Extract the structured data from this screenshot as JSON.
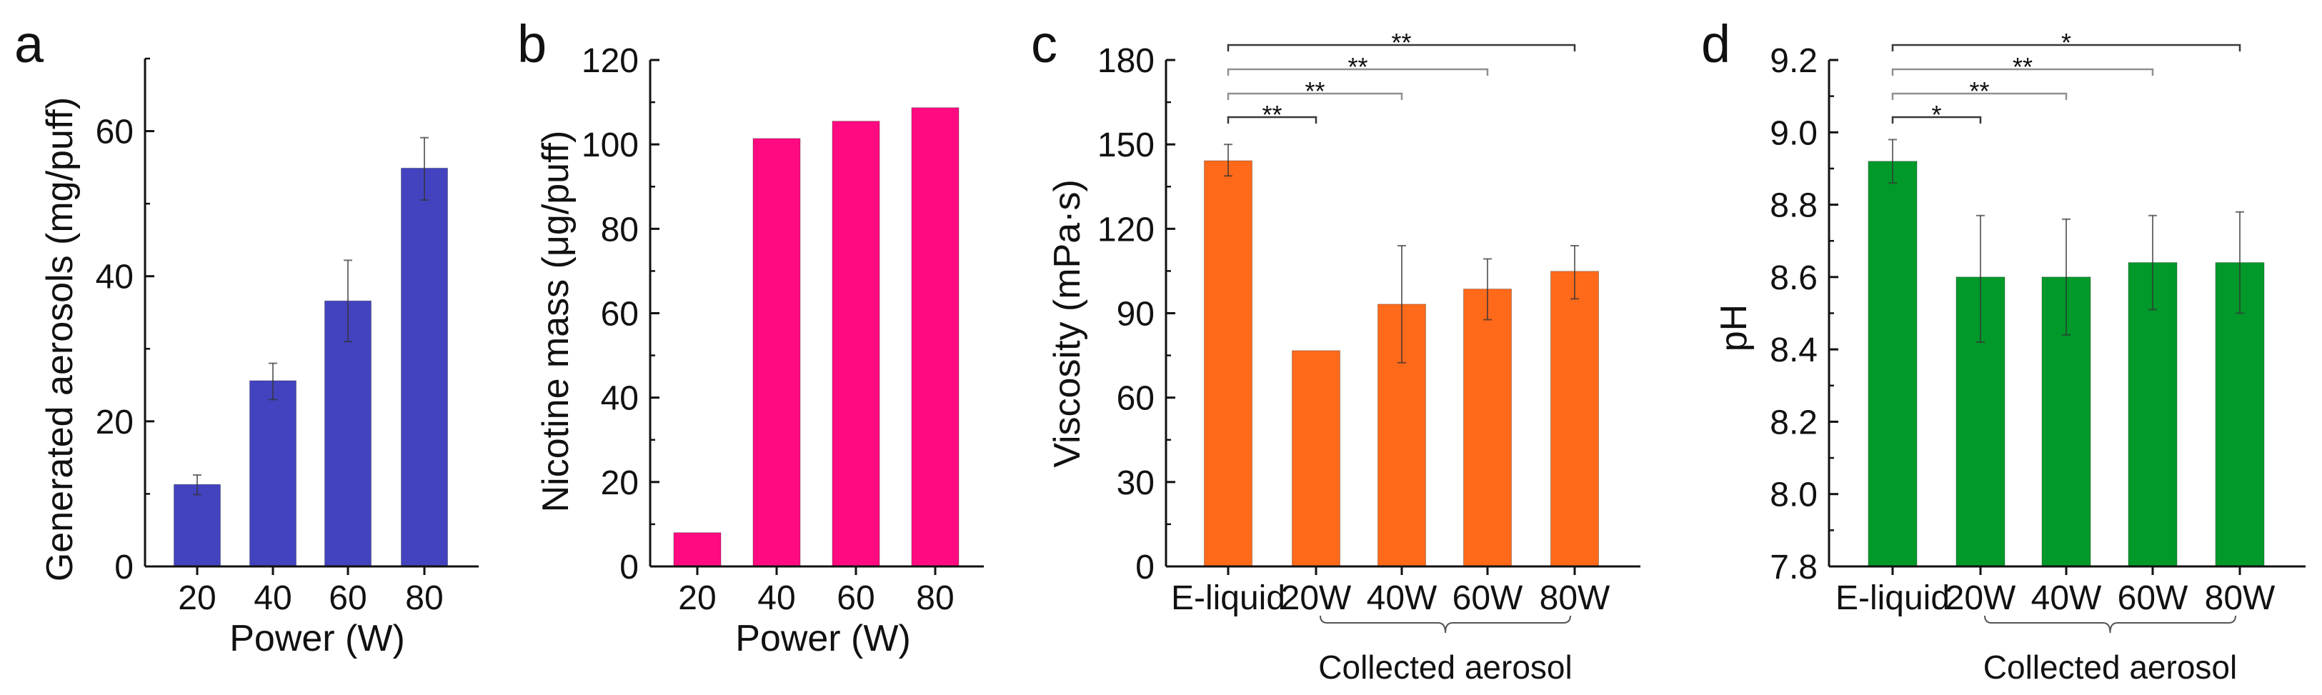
{
  "chart_data": [
    {
      "panel": "a",
      "type": "bar",
      "categories": [
        "20",
        "40",
        "60",
        "80"
      ],
      "values": [
        11.3,
        25.6,
        36.6,
        54.9
      ],
      "error_upper": [
        12.6,
        28.0,
        42.2,
        59.1
      ],
      "error_lower": [
        9.9,
        23.0,
        31.0,
        50.5
      ],
      "xlabel": "Power (W)",
      "ylabel": "Generated aerosols (mg/puff)",
      "ylim": [
        0,
        70
      ],
      "yticks": [
        0,
        20,
        40,
        60
      ],
      "ytick_labels": [
        "0",
        "20",
        "40",
        "60"
      ],
      "color": "#4343c0",
      "grid": false
    },
    {
      "panel": "b",
      "type": "bar",
      "categories": [
        "20",
        "40",
        "60",
        "80"
      ],
      "values": [
        8.0,
        101.4,
        105.5,
        108.7
      ],
      "xlabel": "Power (W)",
      "ylabel": "Nicotine mass (μg/puff)",
      "ylim": [
        0,
        120
      ],
      "yticks": [
        0,
        20,
        40,
        60,
        80,
        100,
        120
      ],
      "ytick_labels": [
        "0",
        "20",
        "40",
        "60",
        "80",
        "100",
        "120"
      ],
      "color": "#ff0a80",
      "grid": false
    },
    {
      "panel": "c",
      "type": "bar",
      "categories": [
        "E-liquid",
        "20W",
        "40W",
        "60W",
        "80W"
      ],
      "values": [
        144.2,
        76.7,
        93.2,
        98.6,
        104.9
      ],
      "error_upper": [
        150.0,
        76.7,
        114.0,
        109.3,
        114.0
      ],
      "error_lower": [
        138.8,
        76.7,
        72.4,
        87.7,
        95.1
      ],
      "xlabel": "",
      "group_label": "Collected aerosol",
      "ylabel": "Viscosity (mPa·s)",
      "ylim": [
        0,
        180
      ],
      "yticks": [
        0,
        30,
        60,
        90,
        120,
        150,
        180
      ],
      "ytick_labels": [
        "0",
        "30",
        "60",
        "90",
        "120",
        "150",
        "180"
      ],
      "color": "#ff6a1a",
      "significance": [
        {
          "from": "E-liquid",
          "to": "20W",
          "label": "**"
        },
        {
          "from": "E-liquid",
          "to": "40W",
          "label": "**"
        },
        {
          "from": "E-liquid",
          "to": "60W",
          "label": "**"
        },
        {
          "from": "E-liquid",
          "to": "80W",
          "label": "**"
        }
      ],
      "grid": false
    },
    {
      "panel": "d",
      "type": "bar",
      "categories": [
        "E-liquid",
        "20W",
        "40W",
        "60W",
        "80W"
      ],
      "values": [
        8.92,
        8.6,
        8.6,
        8.64,
        8.64
      ],
      "error_upper": [
        8.98,
        8.77,
        8.76,
        8.77,
        8.78
      ],
      "error_lower": [
        8.86,
        8.42,
        8.44,
        8.51,
        8.5
      ],
      "xlabel": "",
      "group_label": "Collected aerosol",
      "ylabel": "pH",
      "ylim": [
        7.8,
        9.2
      ],
      "yticks": [
        7.8,
        8.0,
        8.2,
        8.4,
        8.6,
        8.8,
        9.0,
        9.2
      ],
      "ytick_labels": [
        "7.8",
        "8.0",
        "8.2",
        "8.4",
        "8.6",
        "8.8",
        "9.0",
        "9.2"
      ],
      "color": "#00992a",
      "significance": [
        {
          "from": "E-liquid",
          "to": "20W",
          "label": "*"
        },
        {
          "from": "E-liquid",
          "to": "40W",
          "label": "**"
        },
        {
          "from": "E-liquid",
          "to": "60W",
          "label": "**"
        },
        {
          "from": "E-liquid",
          "to": "80W",
          "label": "*"
        }
      ],
      "grid": false
    }
  ]
}
